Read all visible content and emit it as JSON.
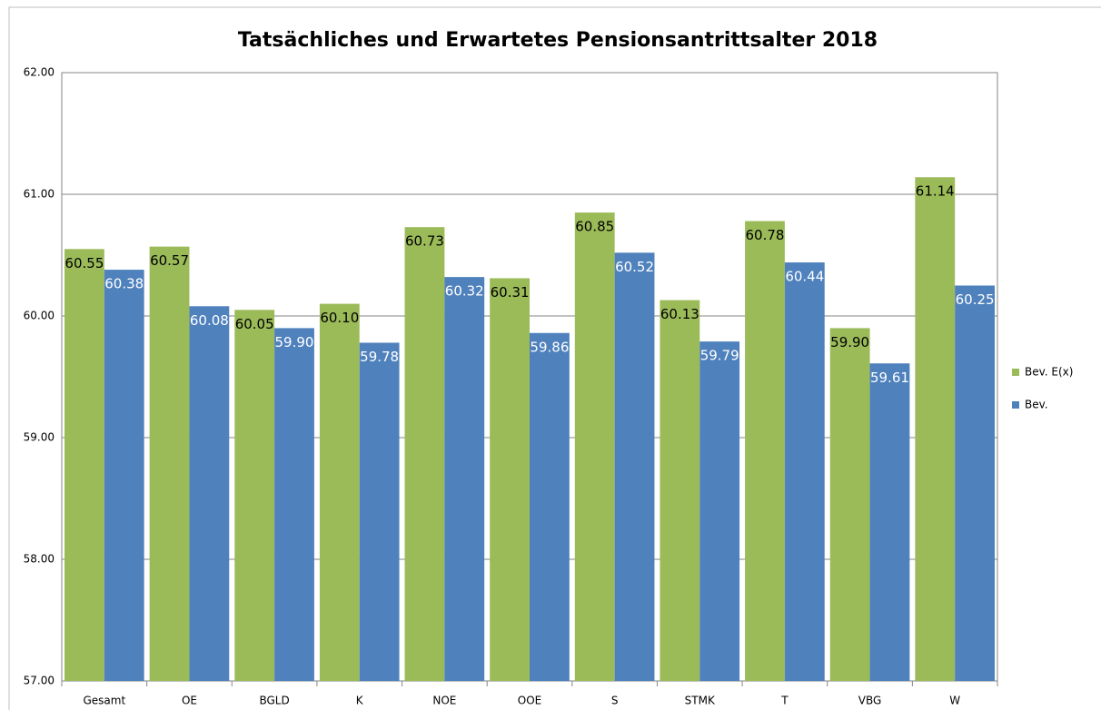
{
  "chart_data": {
    "type": "bar",
    "title": "Tatsächliches und Erwartetes Pensionsantrittsalter 2018",
    "categories": [
      "Gesamt",
      "OE",
      "BGLD",
      "K",
      "NOE",
      "OOE",
      "S",
      "STMK",
      "T",
      "VBG",
      "W"
    ],
    "series": [
      {
        "name": "Bev. E(x)",
        "color": "#9bbb59",
        "label_color": "#000000",
        "values": [
          60.55,
          60.57,
          60.05,
          60.1,
          60.73,
          60.31,
          60.85,
          60.13,
          60.78,
          59.9,
          61.14
        ],
        "value_labels": [
          "60.55",
          "60.57",
          "60.05",
          "60.10",
          "60.73",
          "60.31",
          "60.85",
          "60.13",
          "60.78",
          "59.90",
          "61.14"
        ]
      },
      {
        "name": "Bev.",
        "color": "#4f81bd",
        "label_color": "#ffffff",
        "values": [
          60.38,
          60.08,
          59.9,
          59.78,
          60.32,
          59.86,
          60.52,
          59.79,
          60.44,
          59.61,
          60.25
        ],
        "value_labels": [
          "60.38",
          "60.08",
          "59.90",
          "59.78",
          "60.32",
          "59.86",
          "60.52",
          "59.79",
          "60.44",
          "59.61",
          "60.25"
        ]
      }
    ],
    "ylim": [
      57,
      62
    ],
    "yticks": [
      {
        "value": 57,
        "label": "57.00"
      },
      {
        "value": 58,
        "label": "58.00"
      },
      {
        "value": 59,
        "label": "59.00"
      },
      {
        "value": 60,
        "label": "60.00"
      },
      {
        "value": 61,
        "label": "61.00"
      },
      {
        "value": 62,
        "label": "62.00"
      }
    ],
    "grid": true,
    "legend": "right"
  }
}
